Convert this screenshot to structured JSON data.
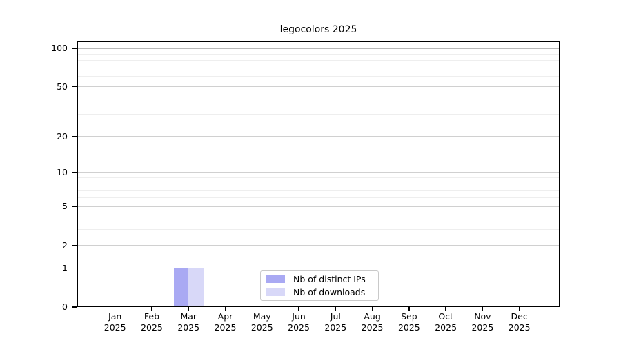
{
  "chart_data": {
    "type": "bar",
    "title": "legocolors 2025",
    "x_categories": [
      {
        "month": "Jan",
        "year": "2025"
      },
      {
        "month": "Feb",
        "year": "2025"
      },
      {
        "month": "Mar",
        "year": "2025"
      },
      {
        "month": "Apr",
        "year": "2025"
      },
      {
        "month": "May",
        "year": "2025"
      },
      {
        "month": "Jun",
        "year": "2025"
      },
      {
        "month": "Jul",
        "year": "2025"
      },
      {
        "month": "Aug",
        "year": "2025"
      },
      {
        "month": "Sep",
        "year": "2025"
      },
      {
        "month": "Oct",
        "year": "2025"
      },
      {
        "month": "Nov",
        "year": "2025"
      },
      {
        "month": "Dec",
        "year": "2025"
      }
    ],
    "series": [
      {
        "name": "Nb of distinct IPs",
        "color": "#a9a9f3",
        "values": [
          0,
          0,
          1,
          0,
          0,
          0,
          0,
          0,
          0,
          0,
          0,
          0
        ]
      },
      {
        "name": "Nb of downloads",
        "color": "#d8d8f8",
        "values": [
          0,
          0,
          1,
          0,
          0,
          0,
          0,
          0,
          0,
          0,
          0,
          0
        ]
      }
    ],
    "y_axis": {
      "scale": "log1p",
      "major_ticks": [
        0,
        1,
        2,
        5,
        10,
        20,
        50,
        100
      ],
      "minor_gridlines": [
        3,
        4,
        6,
        7,
        8,
        9,
        30,
        40,
        60,
        70,
        80,
        90
      ],
      "max": 100,
      "emphasized_gridlines": [
        1,
        100
      ]
    },
    "legend": {
      "position": "bottom-center",
      "border_color": "#c9c9c9"
    },
    "grid": "horizontal",
    "colors": {
      "background": "#ffffff",
      "axis": "#000000",
      "gridline_major": "#d0d0d0",
      "gridline_minor": "#eeeeee",
      "gridline_emphasized": "#b8b8b8"
    }
  }
}
